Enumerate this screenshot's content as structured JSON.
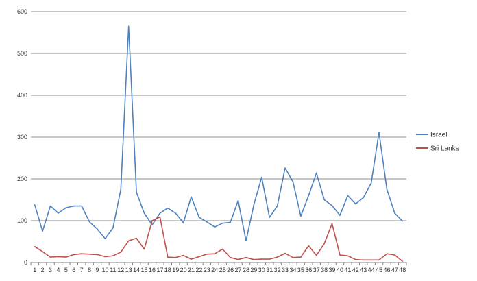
{
  "chart_data": {
    "type": "line",
    "title": "",
    "xlabel": "",
    "ylabel": "",
    "x": [
      1,
      2,
      3,
      4,
      5,
      6,
      7,
      8,
      9,
      10,
      11,
      12,
      13,
      14,
      15,
      16,
      17,
      18,
      19,
      20,
      21,
      22,
      23,
      24,
      25,
      26,
      27,
      28,
      29,
      30,
      31,
      32,
      33,
      34,
      35,
      36,
      37,
      38,
      39,
      40,
      41,
      42,
      43,
      44,
      45,
      46,
      47,
      48
    ],
    "ylim": [
      0,
      600
    ],
    "yticks": [
      0,
      100,
      200,
      300,
      400,
      500,
      600
    ],
    "grid": true,
    "legend_position": "right",
    "series": [
      {
        "name": "Israel",
        "color": "#4F81BD",
        "values": [
          138,
          75,
          135,
          118,
          131,
          135,
          135,
          97,
          80,
          57,
          83,
          175,
          565,
          168,
          118,
          90,
          118,
          130,
          118,
          95,
          157,
          108,
          97,
          85,
          94,
          96,
          148,
          52,
          138,
          204,
          108,
          135,
          226,
          193,
          111,
          160,
          214,
          150,
          136,
          113,
          160,
          140,
          155,
          190,
          311,
          175,
          118,
          99
        ]
      },
      {
        "name": "Sri Lanka",
        "color": "#C0504D",
        "values": [
          38,
          26,
          13,
          14,
          13,
          19,
          21,
          20,
          19,
          14,
          16,
          25,
          52,
          58,
          32,
          100,
          109,
          13,
          12,
          17,
          8,
          14,
          20,
          21,
          32,
          12,
          7,
          12,
          7,
          8,
          8,
          13,
          22,
          12,
          13,
          40,
          17,
          45,
          93,
          18,
          16,
          7,
          6,
          6,
          6,
          21,
          18,
          3
        ]
      }
    ]
  }
}
